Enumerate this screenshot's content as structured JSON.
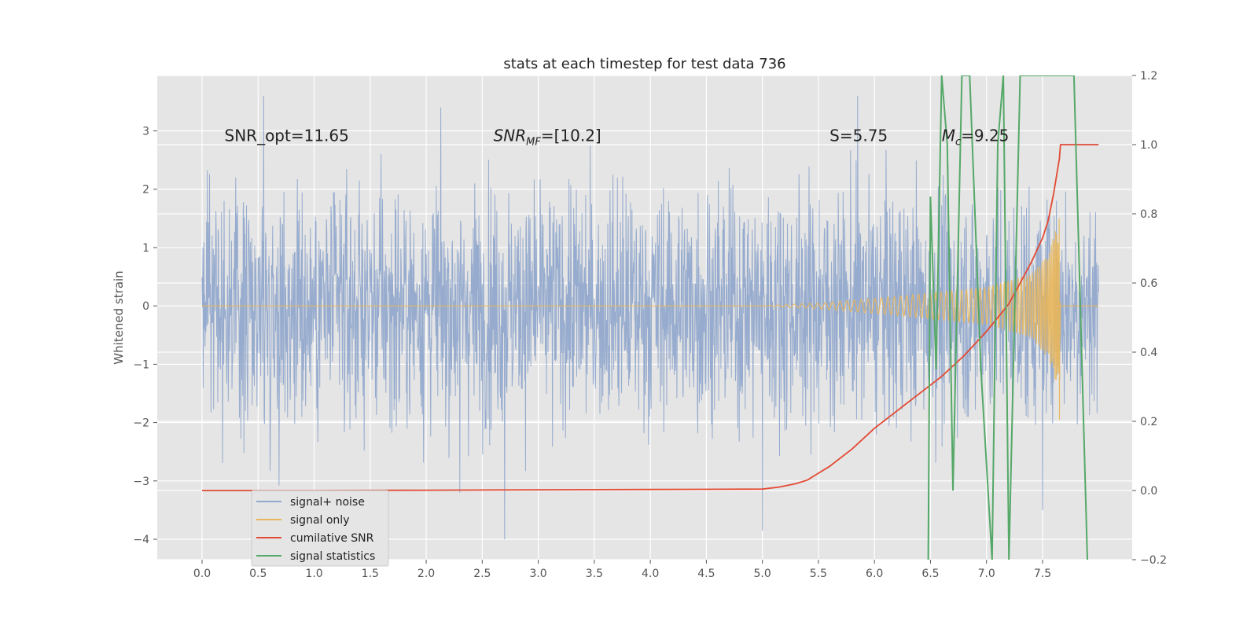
{
  "chart_data": {
    "type": "line",
    "title": "stats at each timestep for test data 736",
    "xlabel": "",
    "ylabel": "Whitened strain",
    "y2label": "",
    "xlim": [
      -0.4,
      8.3
    ],
    "ylim": [
      -4.35,
      3.95
    ],
    "y2lim": [
      -0.2,
      1.2
    ],
    "x_ticks": [
      "0.0",
      "0.5",
      "1.0",
      "1.5",
      "2.0",
      "2.5",
      "3.0",
      "3.5",
      "4.0",
      "4.5",
      "5.0",
      "5.5",
      "6.0",
      "6.5",
      "7.0",
      "7.5"
    ],
    "y_ticks": [
      "−4",
      "−3",
      "−2",
      "−1",
      "0",
      "1",
      "2",
      "3"
    ],
    "y2_ticks": [
      "−0.2",
      "0.0",
      "0.2",
      "0.4",
      "0.6",
      "0.8",
      "1.0",
      "1.2"
    ],
    "grid": true,
    "legend_position": "lower-left",
    "annotations": [
      {
        "id": "snr_opt",
        "text": "SNR_opt=11.65",
        "x": 0.2,
        "y": 2.8
      },
      {
        "id": "snr_mf",
        "text": "SNR_MF=[10.2]",
        "x": 2.6,
        "y": 2.8
      },
      {
        "id": "s",
        "text": "S=5.75",
        "x": 5.6,
        "y": 2.8
      },
      {
        "id": "mc",
        "text": "M_c=9.25",
        "x": 6.6,
        "y": 2.8
      }
    ],
    "series": [
      {
        "name": "signal+ noise",
        "color": "#91a8cc",
        "axis": "left",
        "kind": "noise",
        "x_range": [
          0.0,
          8.0
        ],
        "amplitude_std": 1.0,
        "extremes": [
          [
            0.55,
            3.6
          ],
          [
            2.7,
            -4.0
          ],
          [
            5.0,
            -3.85
          ],
          [
            5.85,
            3.6
          ],
          [
            7.5,
            3.35
          ],
          [
            2.3,
            -3.2
          ],
          [
            7.5,
            -3.5
          ]
        ]
      },
      {
        "name": "signal only",
        "color": "#e8b65a",
        "axis": "left",
        "kind": "chirp",
        "x_range": [
          0.0,
          8.0
        ],
        "merger_x": 7.65,
        "envelope": [
          [
            5.0,
            0.0
          ],
          [
            5.5,
            0.05
          ],
          [
            6.0,
            0.13
          ],
          [
            6.5,
            0.22
          ],
          [
            7.0,
            0.32
          ],
          [
            7.4,
            0.55
          ],
          [
            7.55,
            0.9
          ],
          [
            7.65,
            1.5
          ],
          [
            7.66,
            0.0
          ]
        ],
        "peak": 1.5,
        "trough": -1.95
      },
      {
        "name": "cumilative SNR",
        "color": "#e24a33",
        "axis": "right",
        "x": [
          0.0,
          1.0,
          2.0,
          3.0,
          4.0,
          5.0,
          5.15,
          5.3,
          5.4,
          5.5,
          5.6,
          5.8,
          6.0,
          6.2,
          6.4,
          6.6,
          6.8,
          7.0,
          7.1,
          7.2,
          7.3,
          7.4,
          7.5,
          7.55,
          7.6,
          7.65,
          7.66,
          8.0
        ],
        "values": [
          0.0,
          0.0,
          0.001,
          0.002,
          0.003,
          0.004,
          0.01,
          0.02,
          0.03,
          0.05,
          0.07,
          0.12,
          0.18,
          0.23,
          0.28,
          0.33,
          0.39,
          0.46,
          0.5,
          0.54,
          0.6,
          0.66,
          0.73,
          0.78,
          0.86,
          0.96,
          1.0,
          1.0
        ]
      },
      {
        "name": "signal statistics",
        "color": "#55a868",
        "axis": "right",
        "x": [
          6.48,
          6.5,
          6.55,
          6.6,
          6.65,
          6.7,
          6.78,
          6.85,
          6.95,
          7.05,
          7.1,
          7.15,
          7.2,
          7.3,
          7.78,
          7.9
        ],
        "values": [
          -0.2,
          0.85,
          0.35,
          1.2,
          1.0,
          0.0,
          1.2,
          1.2,
          0.35,
          -0.2,
          1.0,
          1.2,
          -0.2,
          1.2,
          1.2,
          -0.2
        ]
      }
    ]
  }
}
